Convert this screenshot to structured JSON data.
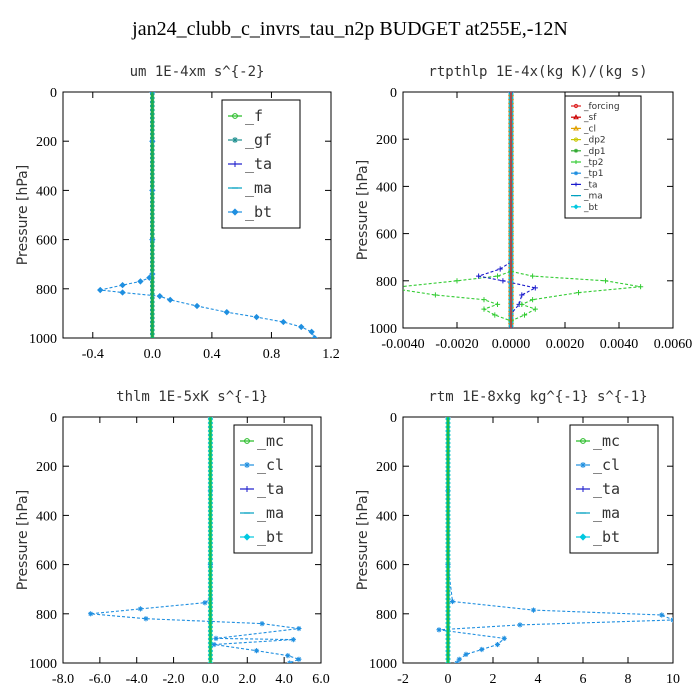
{
  "figure_title": "jan24_clubb_c_invrs_tau_n2p  BUDGET at255E,-12N",
  "chart_data": [
    {
      "type": "line",
      "title": "um  1E-4xm s^{-2}",
      "ylabel": "Pressure [hPa]",
      "xlim": [
        -0.6,
        1.2
      ],
      "ylim": [
        1000,
        0
      ],
      "xticks": [
        "-0.4",
        "0.0",
        "0.4",
        "0.8",
        "1.2"
      ],
      "xtick_values": [
        -0.4,
        0,
        0.4,
        0.8,
        1.2
      ],
      "yticks": [
        "0",
        "200",
        "400",
        "600",
        "800",
        "1000"
      ],
      "ytick_values": [
        0,
        200,
        400,
        600,
        800,
        1000
      ],
      "legend_position": "top-right",
      "series": [
        {
          "name": "_f",
          "color": "#22bb22",
          "marker": "circle",
          "x": [
            0,
            0,
            0
          ],
          "y": [
            0,
            500,
            1000
          ]
        },
        {
          "name": "_gf",
          "color": "#1e8f8f",
          "marker": "star",
          "x": [
            0,
            0,
            0
          ],
          "y": [
            0,
            500,
            1000
          ]
        },
        {
          "name": "_ta",
          "color": "#1a1acc",
          "marker": "plus",
          "x": [
            0,
            0,
            0,
            0,
            0
          ],
          "y": [
            0,
            200,
            500,
            800,
            1000
          ]
        },
        {
          "name": "_ma",
          "color": "#00a0c0",
          "marker": "dash",
          "x": [
            0,
            0,
            0
          ],
          "y": [
            0,
            500,
            1000
          ]
        },
        {
          "name": "_bt",
          "color": "#1f8fe0",
          "marker": "diamond",
          "x": [
            0,
            0,
            0,
            0,
            0,
            -0.02,
            -0.08,
            -0.2,
            -0.35,
            -0.2,
            0.05,
            0.12,
            0.3,
            0.5,
            0.7,
            0.88,
            1.0,
            1.07,
            1.09
          ],
          "y": [
            0,
            200,
            400,
            600,
            740,
            755,
            770,
            785,
            805,
            815,
            830,
            845,
            870,
            895,
            915,
            935,
            955,
            975,
            1000
          ]
        }
      ]
    },
    {
      "type": "line",
      "title": "rtpthlp  1E-4x(kg K)/(kg s)",
      "ylabel": "Pressure [hPa]",
      "xlim": [
        -0.004,
        0.006
      ],
      "ylim": [
        1000,
        0
      ],
      "xticks": [
        "-0.0040",
        "-0.0020",
        "0.0000",
        "0.0020",
        "0.0040",
        "0.0060"
      ],
      "xtick_values": [
        -0.004,
        -0.002,
        0,
        0.002,
        0.004,
        0.006
      ],
      "yticks": [
        "0",
        "200",
        "400",
        "600",
        "800",
        "1000"
      ],
      "ytick_values": [
        0,
        200,
        400,
        600,
        800,
        1000
      ],
      "legend_position": "top-right",
      "series": [
        {
          "name": "_forcing",
          "color": "#dd2222",
          "marker": "circle",
          "x": [
            0,
            0,
            0
          ],
          "y": [
            0,
            500,
            1000
          ]
        },
        {
          "name": "_sf",
          "color": "#cc0000",
          "marker": "triangle",
          "x": [
            0,
            0
          ],
          "y": [
            0,
            1000
          ]
        },
        {
          "name": "_cl",
          "color": "#e0a000",
          "marker": "triangle",
          "x": [
            0,
            0
          ],
          "y": [
            0,
            1000
          ]
        },
        {
          "name": "_dp2",
          "color": "#c8c800",
          "marker": "circle",
          "x": [
            0,
            0
          ],
          "y": [
            0,
            1000
          ]
        },
        {
          "name": "_dp1",
          "color": "#33aa33",
          "marker": "star",
          "x": [
            0,
            0
          ],
          "y": [
            0,
            1000
          ]
        },
        {
          "name": "_tp2",
          "color": "#33cc33",
          "marker": "plus",
          "x": [
            0,
            0,
            0,
            -0.0005,
            -0.002,
            -0.0045,
            -0.0028,
            -0.001,
            -0.0005,
            -0.001,
            -0.0006,
            0,
            0
          ],
          "y": [
            0,
            600,
            760,
            780,
            800,
            830,
            860,
            880,
            900,
            920,
            945,
            970,
            1000
          ]
        },
        {
          "name": "_tp1",
          "color": "#1f8fe0",
          "marker": "star",
          "x": [
            0,
            0
          ],
          "y": [
            0,
            1000
          ]
        },
        {
          "name": "_ta",
          "color": "#1a1acc",
          "marker": "plus",
          "x": [
            0,
            0,
            -0.0004,
            -0.0012,
            -0.0003,
            0.0009,
            0.0004,
            0.0003,
            0,
            0
          ],
          "y": [
            0,
            720,
            750,
            780,
            800,
            830,
            860,
            900,
            940,
            1000
          ]
        },
        {
          "name": "_ma",
          "color": "#00a0c0",
          "marker": "dash",
          "x": [
            0,
            0
          ],
          "y": [
            0,
            1000
          ]
        },
        {
          "name": "_bt",
          "color": "#00c8e0",
          "marker": "diamond",
          "x": [
            0,
            0
          ],
          "y": [
            0,
            1000
          ]
        }
      ],
      "extra_series": [
        {
          "color": "#33cc33",
          "x": [
            0,
            0.0008,
            0.0035,
            0.0048,
            0.0025,
            0.0008,
            0.0004,
            0.0009,
            0.0005,
            0
          ],
          "y": [
            760,
            780,
            800,
            825,
            850,
            880,
            900,
            920,
            945,
            970
          ]
        }
      ]
    },
    {
      "type": "line",
      "title": "thlm  1E-5xK s^{-1}",
      "ylabel": "Pressure [hPa]",
      "xlim": [
        -8,
        6
      ],
      "ylim": [
        1000,
        0
      ],
      "xticks": [
        "-8.0",
        "-6.0",
        "-4.0",
        "-2.0",
        "0.0",
        "2.0",
        "4.0",
        "6.0"
      ],
      "xtick_values": [
        -8,
        -6,
        -4,
        -2,
        0,
        2,
        4,
        6
      ],
      "yticks": [
        "0",
        "200",
        "400",
        "600",
        "800",
        "1000"
      ],
      "ytick_values": [
        0,
        200,
        400,
        600,
        800,
        1000
      ],
      "legend_position": "top-right",
      "series": [
        {
          "name": "_mc",
          "color": "#22bb22",
          "marker": "circle",
          "x": [
            0,
            0,
            0
          ],
          "y": [
            0,
            500,
            1000
          ]
        },
        {
          "name": "_cl",
          "color": "#1f8fe0",
          "marker": "star",
          "x": [
            0,
            0,
            0,
            0,
            -0.3,
            -3.8,
            -6.5,
            -3.5,
            2.8,
            4.8,
            0.3,
            4.5,
            0.2,
            2.5,
            4.2,
            4.8,
            4.3
          ],
          "y": [
            0,
            300,
            600,
            740,
            755,
            780,
            800,
            820,
            840,
            860,
            900,
            905,
            925,
            950,
            970,
            985,
            1000
          ]
        },
        {
          "name": "_ta",
          "color": "#1a1acc",
          "marker": "plus",
          "x": [
            0,
            0,
            0
          ],
          "y": [
            0,
            500,
            1000
          ]
        },
        {
          "name": "_ma",
          "color": "#00a0c0",
          "marker": "dash",
          "x": [
            0,
            0,
            0
          ],
          "y": [
            0,
            500,
            1000
          ]
        },
        {
          "name": "_bt",
          "color": "#00c8e0",
          "marker": "diamond",
          "x": [
            0,
            0,
            0
          ],
          "y": [
            0,
            500,
            1000
          ]
        }
      ]
    },
    {
      "type": "line",
      "title": "rtm  1E-8xkg kg^{-1} s^{-1}",
      "ylabel": "Pressure [hPa]",
      "xlim": [
        -2,
        10
      ],
      "ylim": [
        1000,
        0
      ],
      "xticks": [
        "-2",
        "0",
        "2",
        "4",
        "6",
        "8",
        "10"
      ],
      "xtick_values": [
        -2,
        0,
        2,
        4,
        6,
        8,
        10
      ],
      "yticks": [
        "0",
        "200",
        "400",
        "600",
        "800",
        "1000"
      ],
      "ytick_values": [
        0,
        200,
        400,
        600,
        800,
        1000
      ],
      "legend_position": "top-right",
      "series": [
        {
          "name": "_mc",
          "color": "#22bb22",
          "marker": "circle",
          "x": [
            0,
            0,
            0
          ],
          "y": [
            0,
            500,
            1000
          ]
        },
        {
          "name": "_cl",
          "color": "#1f8fe0",
          "marker": "star",
          "x": [
            0,
            0,
            0,
            0.2,
            3.8,
            9.5,
            10,
            3.2,
            -0.4,
            2.5,
            2.2,
            1.5,
            0.8,
            0.5,
            0.4
          ],
          "y": [
            0,
            300,
            600,
            750,
            785,
            805,
            825,
            845,
            865,
            900,
            925,
            945,
            965,
            985,
            1000
          ]
        },
        {
          "name": "_ta",
          "color": "#1a1acc",
          "marker": "plus",
          "x": [
            0,
            0,
            0
          ],
          "y": [
            0,
            500,
            1000
          ]
        },
        {
          "name": "_ma",
          "color": "#00a0c0",
          "marker": "dash",
          "x": [
            0,
            0,
            0
          ],
          "y": [
            0,
            500,
            1000
          ]
        },
        {
          "name": "_bt",
          "color": "#00c8e0",
          "marker": "diamond",
          "x": [
            0,
            0,
            0
          ],
          "y": [
            0,
            500,
            1000
          ]
        }
      ]
    }
  ]
}
